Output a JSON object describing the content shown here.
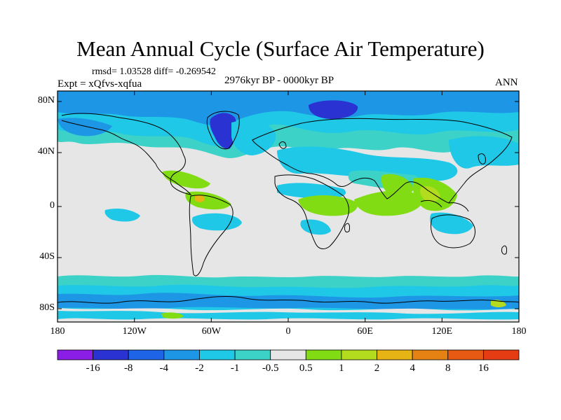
{
  "title": "Mean Annual Cycle (Surface Air Temperature)",
  "stats": "rmsd= 1.03528 diff= -0.269542",
  "experiment": "Expt = xQfvs-xqfua",
  "period": "2976kyr BP - 0000kyr BP",
  "season": "ANN",
  "lat_labels": [
    "80N",
    "40N",
    "0",
    "40S",
    "80S"
  ],
  "lon_labels": [
    "180",
    "120W",
    "60W",
    "0",
    "60E",
    "120E",
    "180"
  ],
  "colorbar": {
    "labels": [
      "-16",
      "-8",
      "-4",
      "-2",
      "-1",
      "-0.5",
      "0.5",
      "1",
      "2",
      "4",
      "8",
      "16"
    ],
    "colors": [
      "#8a1ee6",
      "#2a32d2",
      "#1e64e6",
      "#1e96e6",
      "#1ec8e6",
      "#3cd2c8",
      "#e6e6e6",
      "#82dc14",
      "#b4dc1e",
      "#e6b414",
      "#e68214",
      "#e65a14",
      "#e63c14"
    ]
  },
  "colors": {
    "land_neutral": "#e6e6e6",
    "cool_light": "#1ec8e6",
    "cool_mid": "#1e96e6",
    "cool_strong": "#2a32d2",
    "warm_light": "#82dc14",
    "warm_mid": "#b4dc1e",
    "warm_strong": "#e6b414"
  }
}
